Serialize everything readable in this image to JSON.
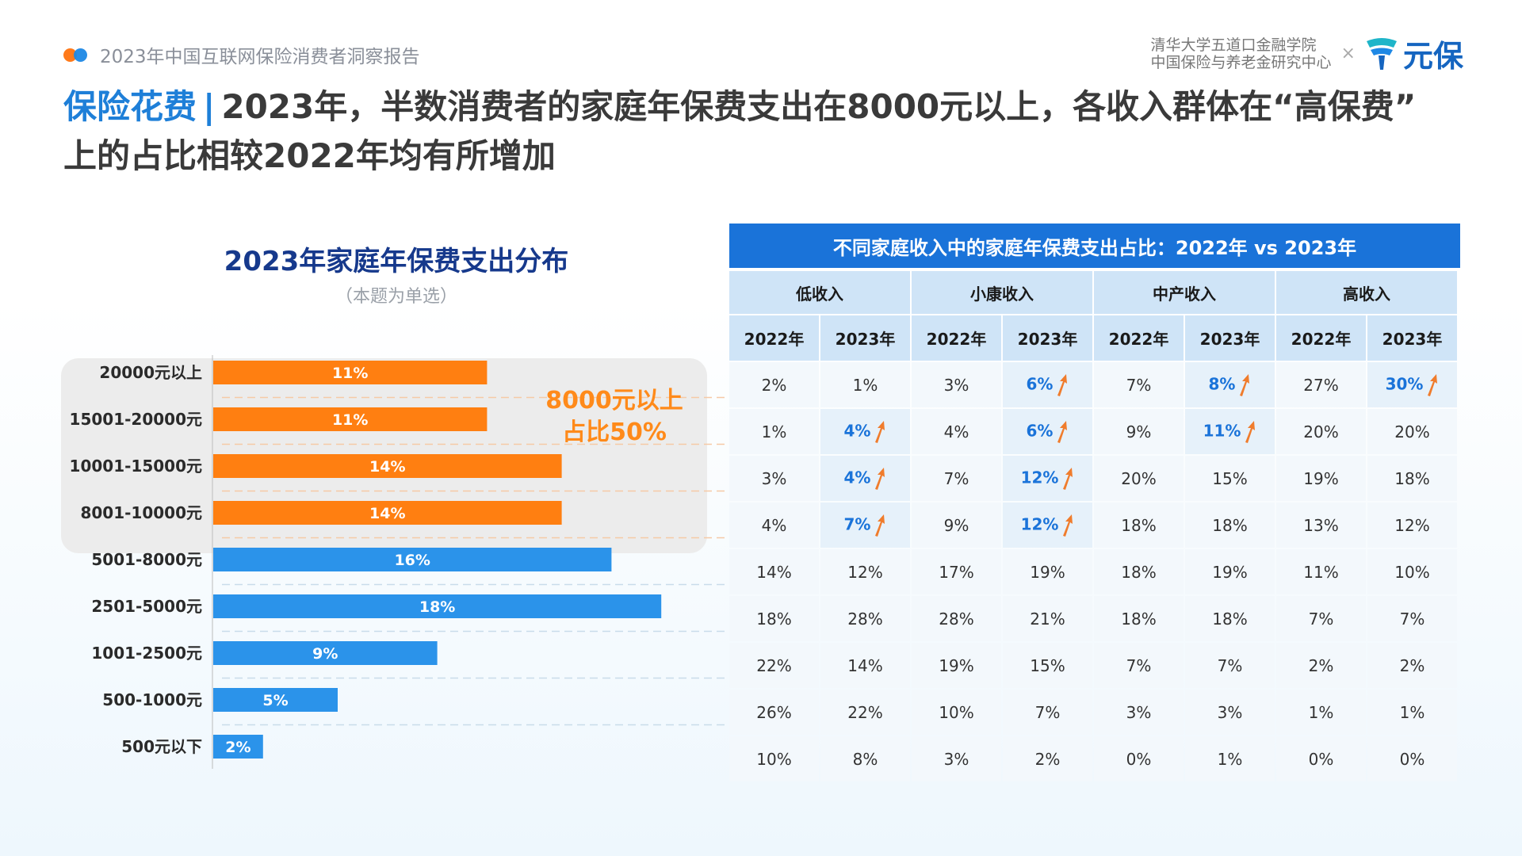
{
  "header": {
    "report_name": "2023年中国互联网保险消费者洞察报告",
    "partner_line1": "清华大学五道口金融学院",
    "partner_line2": "中国保险与养老金研究中心",
    "times": "×",
    "logo_text": "元保"
  },
  "title": {
    "accent": "保险花费",
    "separator": "|",
    "text_line1": "2023年，半数消费者的家庭年保费支出在8000元以上，各收入群体在“高保费”",
    "text_line2": "上的占比相较2022年均有所增加"
  },
  "chart_data": {
    "type": "bar",
    "orientation": "horizontal",
    "title": "2023年家庭年保费支出分布",
    "subtitle": "（本题为单选）",
    "categories": [
      "20000元以上",
      "15001-20000元",
      "10001-15000元",
      "8001-10000元",
      "5001-8000元",
      "2501-5000元",
      "1001-2500元",
      "500-1000元",
      "500元以下"
    ],
    "values": [
      11,
      11,
      14,
      14,
      16,
      18,
      9,
      5,
      2
    ],
    "value_labels": [
      "11%",
      "11%",
      "14%",
      "14%",
      "16%",
      "18%",
      "9%",
      "5%",
      "2%"
    ],
    "highlight_count": 4,
    "colors": {
      "highlight": "#ff7f11",
      "normal": "#2b93ea"
    },
    "callout_line1": "8000元以上",
    "callout_line2": "占比50%"
  },
  "table": {
    "caption": "不同家庭收入中的家庭年保费支出占比：2022年 vs 2023年",
    "groups": [
      "低收入",
      "小康收入",
      "中产收入",
      "高收入"
    ],
    "years": [
      "2022年",
      "2023年"
    ],
    "rows": [
      [
        "2%",
        "1%",
        "3%",
        "6%",
        "7%",
        "8%",
        "27%",
        "30%"
      ],
      [
        "1%",
        "4%",
        "4%",
        "6%",
        "9%",
        "11%",
        "20%",
        "20%"
      ],
      [
        "3%",
        "4%",
        "7%",
        "12%",
        "20%",
        "15%",
        "19%",
        "18%"
      ],
      [
        "4%",
        "7%",
        "9%",
        "12%",
        "18%",
        "18%",
        "13%",
        "12%"
      ],
      [
        "14%",
        "12%",
        "17%",
        "19%",
        "18%",
        "19%",
        "11%",
        "10%"
      ],
      [
        "18%",
        "28%",
        "28%",
        "21%",
        "18%",
        "18%",
        "7%",
        "7%"
      ],
      [
        "22%",
        "14%",
        "19%",
        "15%",
        "7%",
        "7%",
        "2%",
        "2%"
      ],
      [
        "26%",
        "22%",
        "10%",
        "7%",
        "3%",
        "3%",
        "1%",
        "1%"
      ],
      [
        "10%",
        "8%",
        "3%",
        "2%",
        "0%",
        "1%",
        "0%",
        "0%"
      ]
    ],
    "increase_cells": [
      [
        0,
        3
      ],
      [
        0,
        5
      ],
      [
        0,
        7
      ],
      [
        1,
        1
      ],
      [
        1,
        3
      ],
      [
        1,
        5
      ],
      [
        2,
        1
      ],
      [
        2,
        3
      ],
      [
        3,
        1
      ],
      [
        3,
        3
      ]
    ],
    "increase_color": "#1a73d9",
    "arrow_color": "#f07c2c"
  }
}
